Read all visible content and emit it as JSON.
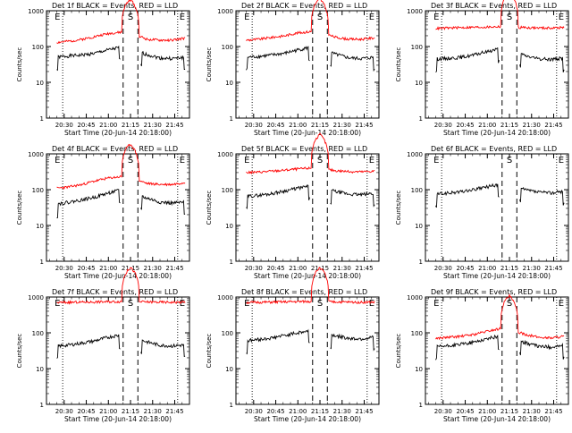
{
  "common": {
    "xlabel": "Start Time (20-Jun-14 20:18:00)",
    "ylabel": "Counts/sec",
    "x_ticks": [
      "20:30",
      "20:45",
      "21:00",
      "21:15",
      "21:30",
      "21:45"
    ],
    "y_ticks": [
      "1",
      "10",
      "100",
      "1000"
    ],
    "marker_labels": [
      "E",
      "S",
      "E"
    ],
    "colors": {
      "events": "#000000",
      "lld": "#ff0000"
    }
  },
  "chart_data": [
    {
      "type": "line",
      "title": "Det 1f BLACK = Events, RED = LLD",
      "xlim": [
        "20:18",
        "21:55"
      ],
      "ylim": [
        1,
        1000
      ],
      "yscale": "log",
      "series": [
        {
          "color": "black",
          "values": [
            50,
            55,
            58,
            65,
            80,
            95,
            78,
            60,
            48,
            46,
            50
          ]
        },
        {
          "color": "red",
          "values": [
            130,
            140,
            160,
            190,
            230,
            250,
            220,
            160,
            150,
            150,
            170
          ]
        }
      ]
    },
    {
      "type": "line",
      "title": "Det 2f BLACK = Events, RED = LLD",
      "xlim": [
        "20:18",
        "21:55"
      ],
      "ylim": [
        1,
        1000
      ],
      "yscale": "log",
      "series": [
        {
          "color": "black",
          "values": [
            50,
            53,
            58,
            65,
            80,
            95,
            78,
            60,
            48,
            46,
            50
          ]
        },
        {
          "color": "red",
          "values": [
            150,
            160,
            180,
            200,
            240,
            260,
            230,
            180,
            160,
            160,
            175
          ]
        }
      ]
    },
    {
      "type": "line",
      "title": "Det 3f BLACK = Events, RED = LLD",
      "xlim": [
        "20:18",
        "21:55"
      ],
      "ylim": [
        1,
        1000
      ],
      "yscale": "log",
      "series": [
        {
          "color": "black",
          "values": [
            45,
            47,
            50,
            58,
            72,
            88,
            72,
            55,
            45,
            44,
            48
          ]
        },
        {
          "color": "red",
          "values": [
            320,
            330,
            340,
            345,
            350,
            360,
            350,
            340,
            330,
            330,
            340
          ]
        }
      ]
    },
    {
      "type": "line",
      "title": "Det 4f BLACK = Events, RED = LLD",
      "xlim": [
        "20:18",
        "21:55"
      ],
      "ylim": [
        1,
        1000
      ],
      "yscale": "log",
      "series": [
        {
          "color": "black",
          "values": [
            40,
            45,
            52,
            62,
            80,
            98,
            78,
            58,
            45,
            42,
            44
          ]
        },
        {
          "color": "red",
          "values": [
            110,
            120,
            140,
            175,
            210,
            230,
            200,
            150,
            140,
            140,
            160
          ]
        }
      ]
    },
    {
      "type": "line",
      "title": "Det 5f BLACK = Events, RED = LLD",
      "xlim": [
        "20:18",
        "21:55"
      ],
      "ylim": [
        1,
        1000
      ],
      "yscale": "log",
      "series": [
        {
          "color": "black",
          "values": [
            65,
            70,
            78,
            92,
            110,
            125,
            108,
            88,
            75,
            72,
            80
          ]
        },
        {
          "color": "red",
          "values": [
            300,
            310,
            330,
            350,
            380,
            400,
            380,
            340,
            320,
            315,
            330
          ]
        }
      ]
    },
    {
      "type": "line",
      "title": "Det 6f BLACK = Events, RED = LLD",
      "xlim": [
        "20:18",
        "21:55"
      ],
      "ylim": [
        1,
        1000
      ],
      "yscale": "log",
      "series": [
        {
          "color": "black",
          "values": [
            75,
            80,
            88,
            100,
            120,
            140,
            122,
            98,
            85,
            82,
            90
          ]
        }
      ]
    },
    {
      "type": "line",
      "title": "Det 7f BLACK = Events, RED = LLD",
      "xlim": [
        "20:18",
        "21:55"
      ],
      "ylim": [
        1,
        1000
      ],
      "yscale": "log",
      "series": [
        {
          "color": "black",
          "values": [
            42,
            46,
            52,
            60,
            75,
            88,
            72,
            56,
            45,
            43,
            46
          ]
        },
        {
          "color": "red",
          "values": [
            700,
            710,
            720,
            730,
            740,
            750,
            740,
            730,
            720,
            715,
            720
          ]
        }
      ]
    },
    {
      "type": "line",
      "title": "Det 8f BLACK = Events, RED = LLD",
      "xlim": [
        "20:18",
        "21:55"
      ],
      "ylim": [
        1,
        1000
      ],
      "yscale": "log",
      "series": [
        {
          "color": "black",
          "values": [
            60,
            65,
            72,
            85,
            100,
            115,
            100,
            82,
            70,
            68,
            75
          ]
        },
        {
          "color": "red",
          "values": [
            700,
            710,
            720,
            730,
            740,
            750,
            740,
            730,
            720,
            715,
            720
          ]
        }
      ]
    },
    {
      "type": "line",
      "title": "Det 9f BLACK = Events, RED = LLD",
      "xlim": [
        "20:18",
        "21:55"
      ],
      "ylim": [
        1,
        1000
      ],
      "yscale": "log",
      "series": [
        {
          "color": "black",
          "values": [
            40,
            43,
            48,
            55,
            68,
            82,
            68,
            52,
            42,
            40,
            44
          ]
        },
        {
          "color": "red",
          "values": [
            70,
            75,
            80,
            90,
            110,
            130,
            115,
            90,
            75,
            72,
            80
          ]
        }
      ]
    }
  ]
}
